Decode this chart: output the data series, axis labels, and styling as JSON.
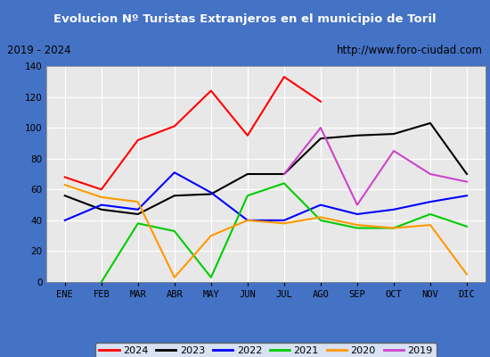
{
  "title": "Evolucion Nº Turistas Extranjeros en el municipio de Toril",
  "subtitle_left": "2019 - 2024",
  "subtitle_right": "http://www.foro-ciudad.com",
  "months": [
    "ENE",
    "FEB",
    "MAR",
    "ABR",
    "MAY",
    "JUN",
    "JUL",
    "AGO",
    "SEP",
    "OCT",
    "NOV",
    "DIC"
  ],
  "series": {
    "2024": {
      "color": "#ff0000",
      "data": [
        68,
        60,
        92,
        101,
        124,
        95,
        133,
        117,
        null,
        null,
        null,
        null
      ]
    },
    "2023": {
      "color": "#000000",
      "data": [
        56,
        47,
        44,
        56,
        57,
        70,
        70,
        93,
        95,
        96,
        103,
        70
      ]
    },
    "2022": {
      "color": "#0000ff",
      "data": [
        40,
        50,
        47,
        71,
        58,
        40,
        40,
        50,
        44,
        47,
        52,
        56
      ]
    },
    "2021": {
      "color": "#00cc00",
      "data": [
        null,
        0,
        38,
        33,
        3,
        56,
        64,
        40,
        35,
        35,
        44,
        36
      ]
    },
    "2020": {
      "color": "#ff9900",
      "data": [
        63,
        55,
        52,
        3,
        30,
        40,
        38,
        42,
        37,
        35,
        37,
        5
      ]
    },
    "2019": {
      "color": "#cc44cc",
      "data": [
        null,
        null,
        null,
        null,
        null,
        null,
        70,
        100,
        50,
        85,
        70,
        65
      ]
    }
  },
  "ylim": [
    0,
    140
  ],
  "yticks": [
    0,
    20,
    40,
    60,
    80,
    100,
    120,
    140
  ],
  "title_bg": "#4472c4",
  "title_color": "#ffffff",
  "plot_bg": "#e8e8e8",
  "grid_color": "#ffffff",
  "border_color": "#4472c4",
  "outer_bg": "#f0f0f0",
  "legend_order": [
    "2024",
    "2023",
    "2022",
    "2021",
    "2020",
    "2019"
  ]
}
